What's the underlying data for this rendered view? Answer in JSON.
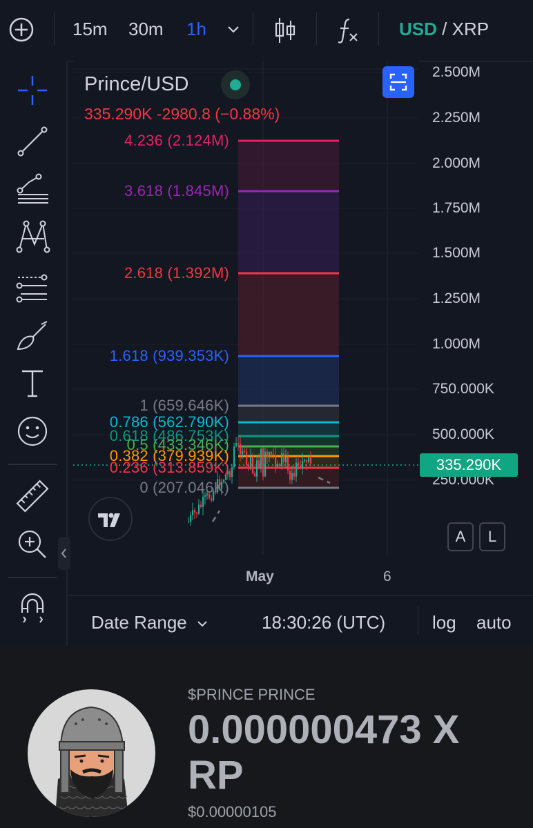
{
  "toolbar": {
    "intervals": [
      "15m",
      "30m",
      "1h"
    ],
    "active_interval": "1h",
    "pair_base": "USD",
    "pair_sep": "/",
    "pair_quote": "XRP",
    "colors": {
      "active": "#2962ff",
      "pair_base": "#22ab94"
    }
  },
  "legend": {
    "symbol": "Prince/USD",
    "price": "335.290K",
    "change": "-2980.8",
    "change_pct": "(−0.88%)",
    "color": "#f23645"
  },
  "fib_levels": [
    {
      "label": "4.236 (2.124M)",
      "color": "#e91e63"
    },
    {
      "label": "3.618 (1.845M)",
      "color": "#9c27b0"
    },
    {
      "label": "2.618 (1.392M)",
      "color": "#f23645"
    },
    {
      "label": "1.618 (939.353K)",
      "color": "#2962ff"
    },
    {
      "label": "1 (659.646K)",
      "color": "#787b86"
    },
    {
      "label": "0.786 (562.790K)",
      "color": "#00bcd4"
    },
    {
      "label": "0.618 (486.753K)",
      "color": "#089981"
    },
    {
      "label": "0.5 (433.346K)",
      "color": "#4caf50"
    },
    {
      "label": "0.382 (379.939K)",
      "color": "#ff9800"
    },
    {
      "label": "0.236 (313.859K)",
      "color": "#f23645"
    },
    {
      "label": "0 (207.046K)",
      "color": "#787b86"
    }
  ],
  "price_axis": [
    "2.500M",
    "2.250M",
    "2.000M",
    "1.750M",
    "1.500M",
    "1.250M",
    "1.000M",
    "750.000K",
    "500.000K",
    "250.000K"
  ],
  "current_price": "335.290K",
  "time_axis": {
    "may": "May",
    "six": "6"
  },
  "bottom": {
    "date_range": "Date Range",
    "time": "18:30:26 (UTC)",
    "log": "log",
    "auto": "auto",
    "scale_a": "A",
    "scale_l": "L"
  },
  "footer": {
    "ticker": "$PRINCE PRINCE",
    "price_line1": "0.000000473 X",
    "price_line2": "RP",
    "usd_price": "$0.00000105"
  }
}
